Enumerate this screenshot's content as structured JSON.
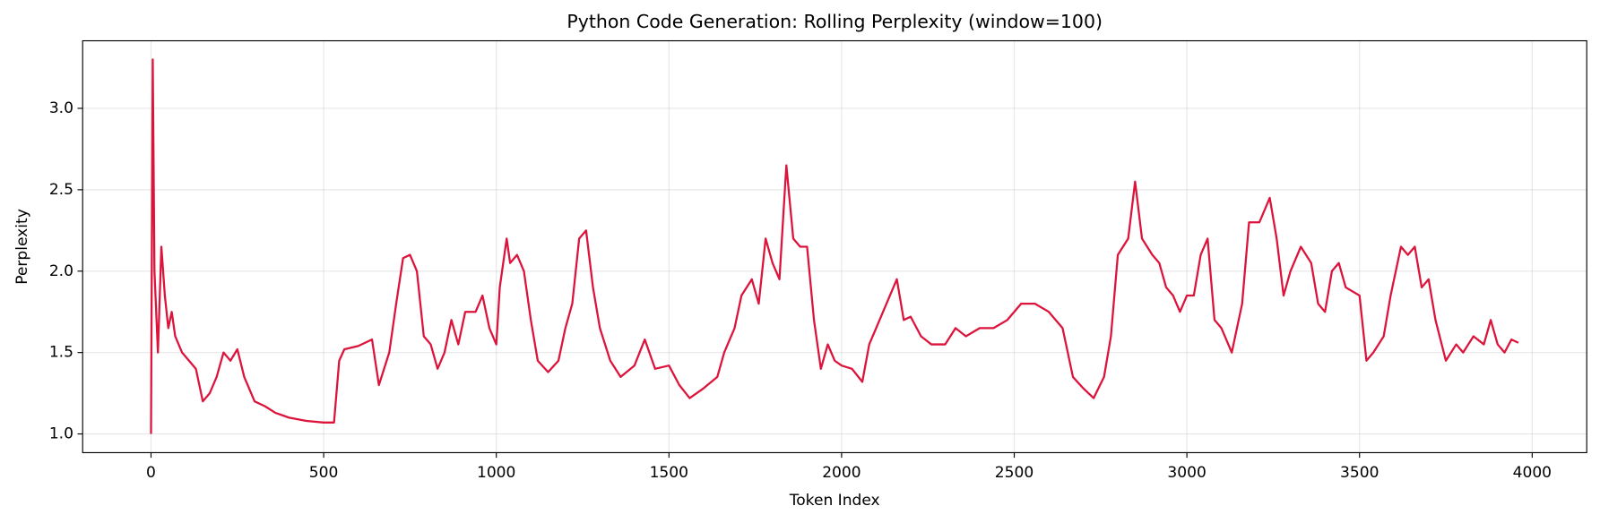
{
  "chart_data": {
    "type": "line",
    "title": "Python Code Generation: Rolling Perplexity (window=100)",
    "xlabel": "Token Index",
    "ylabel": "Perplexity",
    "xlim": [
      -198,
      4158
    ],
    "ylim": [
      0.885,
      3.415
    ],
    "xticks": [
      0,
      500,
      1000,
      1500,
      2000,
      2500,
      3000,
      3500,
      4000
    ],
    "yticks": [
      {
        "value": 1.0,
        "label": "1.0"
      },
      {
        "value": 1.5,
        "label": "1.5"
      },
      {
        "value": 2.0,
        "label": "2.0"
      },
      {
        "value": 2.5,
        "label": "2.5"
      },
      {
        "value": 3.0,
        "label": "3.0"
      }
    ],
    "grid": true,
    "series": [
      {
        "name": "Rolling Perplexity",
        "color": "#dc143c",
        "x": [
          0,
          5,
          10,
          20,
          30,
          40,
          50,
          60,
          70,
          90,
          110,
          130,
          150,
          170,
          190,
          210,
          230,
          250,
          270,
          300,
          330,
          360,
          400,
          450,
          500,
          530,
          545,
          560,
          600,
          640,
          660,
          690,
          710,
          730,
          750,
          770,
          790,
          810,
          830,
          850,
          870,
          890,
          910,
          940,
          960,
          980,
          1000,
          1010,
          1030,
          1040,
          1060,
          1080,
          1100,
          1120,
          1150,
          1180,
          1200,
          1220,
          1240,
          1260,
          1280,
          1300,
          1330,
          1360,
          1400,
          1430,
          1460,
          1500,
          1530,
          1560,
          1600,
          1640,
          1660,
          1690,
          1710,
          1740,
          1760,
          1780,
          1800,
          1820,
          1840,
          1860,
          1880,
          1900,
          1920,
          1940,
          1960,
          1980,
          2000,
          2030,
          2060,
          2080,
          2100,
          2130,
          2160,
          2180,
          2200,
          2230,
          2260,
          2300,
          2330,
          2360,
          2400,
          2440,
          2480,
          2520,
          2560,
          2600,
          2640,
          2670,
          2700,
          2730,
          2760,
          2780,
          2800,
          2830,
          2850,
          2870,
          2900,
          2920,
          2940,
          2960,
          2980,
          3000,
          3020,
          3040,
          3060,
          3080,
          3100,
          3130,
          3160,
          3180,
          3210,
          3240,
          3260,
          3280,
          3300,
          3330,
          3360,
          3380,
          3400,
          3420,
          3440,
          3460,
          3500,
          3520,
          3540,
          3570,
          3590,
          3620,
          3640,
          3660,
          3680,
          3700,
          3720,
          3750,
          3780,
          3800,
          3830,
          3860,
          3880,
          3900,
          3920,
          3940,
          3960
        ],
        "values": [
          1.0,
          3.3,
          2.0,
          1.5,
          2.15,
          1.85,
          1.65,
          1.75,
          1.6,
          1.5,
          1.45,
          1.4,
          1.2,
          1.25,
          1.35,
          1.5,
          1.45,
          1.52,
          1.35,
          1.2,
          1.17,
          1.13,
          1.1,
          1.08,
          1.07,
          1.07,
          1.45,
          1.52,
          1.54,
          1.58,
          1.3,
          1.5,
          1.8,
          2.08,
          2.1,
          2.0,
          1.6,
          1.55,
          1.4,
          1.5,
          1.7,
          1.55,
          1.75,
          1.75,
          1.85,
          1.65,
          1.55,
          1.9,
          2.2,
          2.05,
          2.1,
          2.0,
          1.7,
          1.45,
          1.38,
          1.45,
          1.65,
          1.8,
          2.2,
          2.25,
          1.9,
          1.65,
          1.45,
          1.35,
          1.42,
          1.58,
          1.4,
          1.42,
          1.3,
          1.22,
          1.28,
          1.35,
          1.5,
          1.65,
          1.85,
          1.95,
          1.8,
          2.2,
          2.05,
          1.95,
          2.65,
          2.2,
          2.15,
          2.15,
          1.7,
          1.4,
          1.55,
          1.45,
          1.42,
          1.4,
          1.32,
          1.55,
          1.65,
          1.8,
          1.95,
          1.7,
          1.72,
          1.6,
          1.55,
          1.55,
          1.65,
          1.6,
          1.65,
          1.65,
          1.7,
          1.8,
          1.8,
          1.75,
          1.65,
          1.35,
          1.28,
          1.22,
          1.35,
          1.6,
          2.1,
          2.2,
          2.55,
          2.2,
          2.1,
          2.05,
          1.9,
          1.85,
          1.75,
          1.85,
          1.85,
          2.1,
          2.2,
          1.7,
          1.65,
          1.5,
          1.8,
          2.3,
          2.3,
          2.45,
          2.2,
          1.85,
          2.0,
          2.15,
          2.05,
          1.8,
          1.75,
          2.0,
          2.05,
          1.9,
          1.85,
          1.45,
          1.5,
          1.6,
          1.85,
          2.15,
          2.1,
          2.15,
          1.9,
          1.95,
          1.7,
          1.45,
          1.55,
          1.5,
          1.6,
          1.55,
          1.7,
          1.55,
          1.5,
          1.58,
          1.56
        ]
      }
    ]
  }
}
